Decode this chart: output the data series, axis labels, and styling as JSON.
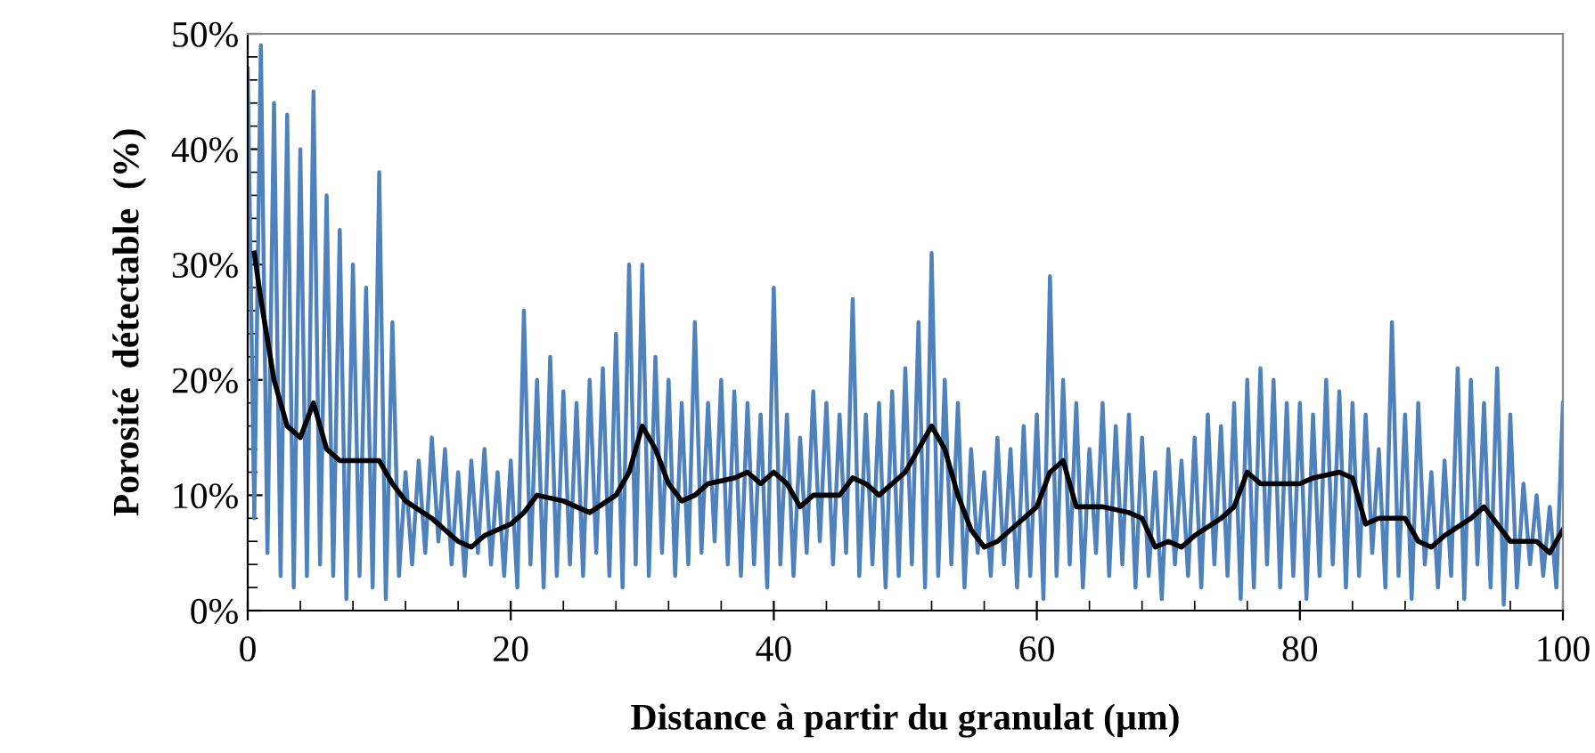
{
  "chart_data": {
    "type": "line",
    "xlabel": "Distance à partir du granulat (µm)",
    "ylabel": "Porosité  détectable  (%)",
    "xlim": [
      0,
      100
    ],
    "xticks": [
      0,
      20,
      40,
      60,
      80,
      100
    ],
    "ylim": [
      0,
      50
    ],
    "yticks": [
      {
        "value": 0,
        "label": "0%"
      },
      {
        "value": 10,
        "label": "10%"
      },
      {
        "value": 20,
        "label": "20%"
      },
      {
        "value": 30,
        "label": "30%"
      },
      {
        "value": 40,
        "label": "40%"
      },
      {
        "value": 50,
        "label": "50%"
      }
    ],
    "grid": false,
    "legend": false,
    "marker": "none",
    "line_style": "solid",
    "series": [
      {
        "color": "#4f81bd",
        "x": [
          0,
          0.5,
          1,
          1.5,
          2,
          2.5,
          3,
          3.5,
          4,
          4.5,
          5,
          5.5,
          6,
          6.5,
          7,
          7.5,
          8,
          8.5,
          9,
          9.5,
          10,
          10.5,
          11,
          11.5,
          12,
          12.5,
          13,
          13.5,
          14,
          14.5,
          15,
          15.5,
          16,
          16.5,
          17,
          17.5,
          18,
          18.5,
          19,
          19.5,
          20,
          20.5,
          21,
          21.5,
          22,
          22.5,
          23,
          23.5,
          24,
          24.5,
          25,
          25.5,
          26,
          26.5,
          27,
          27.5,
          28,
          28.5,
          29,
          29.5,
          30,
          30.5,
          31,
          31.5,
          32,
          32.5,
          33,
          33.5,
          34,
          34.5,
          35,
          35.5,
          36,
          36.5,
          37,
          37.5,
          38,
          38.5,
          39,
          39.5,
          40,
          40.5,
          41,
          41.5,
          42,
          42.5,
          43,
          43.5,
          44,
          44.5,
          45,
          45.5,
          46,
          46.5,
          47,
          47.5,
          48,
          48.5,
          49,
          49.5,
          50,
          50.5,
          51,
          51.5,
          52,
          52.5,
          53,
          53.5,
          54,
          54.5,
          55,
          55.5,
          56,
          56.5,
          57,
          57.5,
          58,
          58.5,
          59,
          59.5,
          60,
          60.5,
          61,
          61.5,
          62,
          62.5,
          63,
          63.5,
          64,
          64.5,
          65,
          65.5,
          66,
          66.5,
          67,
          67.5,
          68,
          68.5,
          69,
          69.5,
          70,
          70.5,
          71,
          71.5,
          72,
          72.5,
          73,
          73.5,
          74,
          74.5,
          75,
          75.5,
          76,
          76.5,
          77,
          77.5,
          78,
          78.5,
          79,
          79.5,
          80,
          80.5,
          81,
          81.5,
          82,
          82.5,
          83,
          83.5,
          84,
          84.5,
          85,
          85.5,
          86,
          86.5,
          87,
          87.5,
          88,
          88.5,
          89,
          89.5,
          90,
          90.5,
          91,
          91.5,
          92,
          92.5,
          93,
          93.5,
          94,
          94.5,
          95,
          95.5,
          96,
          96.5,
          97,
          97.5,
          98,
          98.5,
          99,
          99.5,
          100
        ],
        "values": [
          47,
          8,
          49,
          5,
          44,
          3,
          43,
          2,
          40,
          3,
          45,
          4,
          36,
          3,
          33,
          1,
          30,
          3,
          28,
          2,
          38,
          1,
          25,
          3,
          12,
          4,
          13,
          5,
          15,
          6,
          14,
          4,
          12,
          3,
          13,
          5,
          14,
          4,
          12,
          3,
          13,
          2,
          26,
          4,
          20,
          2,
          22,
          3,
          19,
          4,
          18,
          3,
          20,
          5,
          21,
          3,
          24,
          2,
          30,
          4,
          30,
          3,
          22,
          5,
          20,
          3,
          18,
          4,
          25,
          5,
          18,
          6,
          20,
          4,
          19,
          3,
          18,
          4,
          17,
          2,
          28,
          4,
          17,
          3,
          15,
          5,
          19,
          6,
          18,
          4,
          17,
          5,
          27,
          3,
          17,
          4,
          18,
          2,
          19,
          3,
          21,
          4,
          25,
          2,
          31,
          3,
          20,
          4,
          18,
          2,
          14,
          5,
          12,
          3,
          15,
          4,
          14,
          2,
          16,
          3,
          17,
          1,
          29,
          3,
          20,
          4,
          18,
          2,
          14,
          5,
          18,
          3,
          16,
          4,
          17,
          2,
          15,
          3,
          12,
          1,
          14,
          4,
          13,
          3,
          15,
          2,
          17,
          4,
          16,
          3,
          18,
          1,
          20,
          2,
          21,
          4,
          20,
          2,
          18,
          3,
          18,
          1,
          17,
          3,
          20,
          4,
          19,
          2,
          18,
          3,
          17,
          5,
          14,
          2,
          25,
          3,
          17,
          1,
          18,
          4,
          12,
          2,
          13,
          3,
          21,
          1,
          20,
          4,
          18,
          2,
          21,
          0.5,
          17,
          2,
          11,
          4,
          10,
          3,
          9,
          2,
          18
        ]
      },
      {
        "color": "#000000",
        "x": [
          0.5,
          1,
          2,
          3,
          4,
          5,
          6,
          7,
          8,
          9,
          10,
          11,
          12,
          14,
          16,
          17,
          18,
          19,
          20,
          21,
          22,
          24,
          26,
          28,
          29,
          30,
          31,
          32,
          33,
          34,
          35,
          37,
          38,
          39,
          40,
          41,
          42,
          43,
          45,
          46,
          47,
          48,
          50,
          51,
          52,
          53,
          54,
          55,
          56,
          57,
          58,
          59,
          60,
          61,
          62,
          63,
          65,
          67,
          68,
          69,
          70,
          71,
          72,
          74,
          75,
          76,
          77,
          78,
          80,
          81,
          83,
          84,
          85,
          86,
          88,
          89,
          90,
          91,
          93,
          94,
          95,
          96,
          97,
          98,
          99,
          100
        ],
        "values": [
          31,
          27,
          20,
          16,
          15,
          18,
          14,
          13,
          13,
          13,
          13,
          11,
          9.5,
          8,
          6,
          5.5,
          6.5,
          7,
          7.5,
          8.5,
          10,
          9.5,
          8.5,
          10,
          12,
          16,
          14,
          11,
          9.5,
          10,
          11,
          11.5,
          12,
          11,
          12,
          11,
          9,
          10,
          10,
          11.5,
          11,
          10,
          12,
          14,
          16,
          14,
          10,
          7,
          5.5,
          6,
          7,
          8,
          9,
          12,
          13,
          9,
          9,
          8.5,
          8,
          5.5,
          6,
          5.5,
          6.5,
          8,
          9,
          12,
          11,
          11,
          11,
          11.5,
          12,
          11.5,
          7.5,
          8,
          8,
          6,
          5.5,
          6.5,
          8,
          9,
          7.5,
          6,
          6,
          6,
          5,
          7
        ]
      }
    ]
  }
}
